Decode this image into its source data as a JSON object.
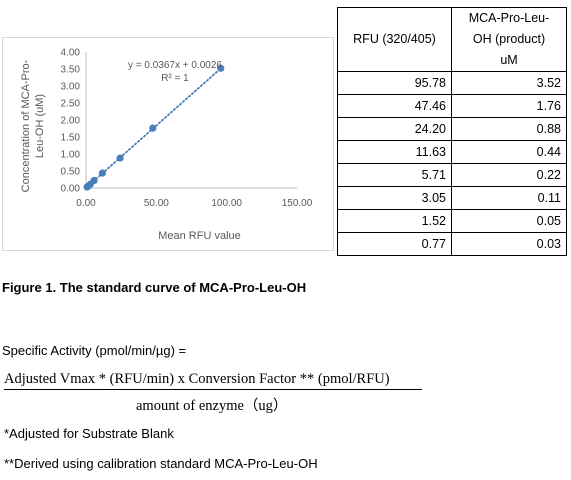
{
  "chart_data": {
    "type": "scatter",
    "x": [
      95.78,
      47.46,
      24.2,
      11.63,
      5.71,
      3.05,
      1.52,
      0.77
    ],
    "y": [
      3.52,
      1.76,
      0.88,
      0.44,
      0.22,
      0.11,
      0.05,
      0.03
    ],
    "xlabel": "Mean RFU value",
    "ylabel": "Concentration of MCA-Pro-Leu-OH (uM)",
    "ylabel_lines": [
      "Concentration of MCA-Pro-",
      "Leu-OH (uM)"
    ],
    "xlim": [
      0,
      150
    ],
    "ylim": [
      0,
      4
    ],
    "x_ticks": [
      "0.00",
      "50.00",
      "100.00",
      "150.00"
    ],
    "y_ticks": [
      "0.00",
      "0.50",
      "1.00",
      "1.50",
      "2.00",
      "2.50",
      "3.00",
      "3.50",
      "4.00"
    ],
    "trendline": {
      "slope": 0.0367,
      "intercept": 0.0026,
      "style": "dotted"
    },
    "equation": "y = 0.0367x + 0.0026",
    "r_squared": "R² = 1",
    "grid": false,
    "marker_color": "#4a7ebb"
  },
  "table": {
    "headers": [
      "RFU (320/405)",
      "MCA-Pro-Leu-OH (product) uM"
    ],
    "header_lines": [
      [
        "RFU (320/405)"
      ],
      [
        "MCA-Pro-Leu-",
        "OH (product)",
        "uM"
      ]
    ],
    "rows": [
      [
        "95.78",
        "3.52"
      ],
      [
        "47.46",
        "1.76"
      ],
      [
        "24.20",
        "0.88"
      ],
      [
        "11.63",
        "0.44"
      ],
      [
        "5.71",
        "0.22"
      ],
      [
        "3.05",
        "0.11"
      ],
      [
        "1.52",
        "0.05"
      ],
      [
        "0.77",
        "0.03"
      ]
    ]
  },
  "caption": "Figure 1. The standard curve of MCA-Pro-Leu-OH",
  "specific_activity_label": "Specific Activity (pmol/min/µg) =",
  "formula": {
    "numerator": "Adjusted Vmax * (RFU/min)  x Conversion  Factor ** (pmol/RFU)",
    "denominator": "amount  of enzyme（ug）"
  },
  "notes": {
    "note1": "*Adjusted for Substrate Blank",
    "note2": "**Derived using calibration standard MCA-Pro-Leu-OH"
  }
}
